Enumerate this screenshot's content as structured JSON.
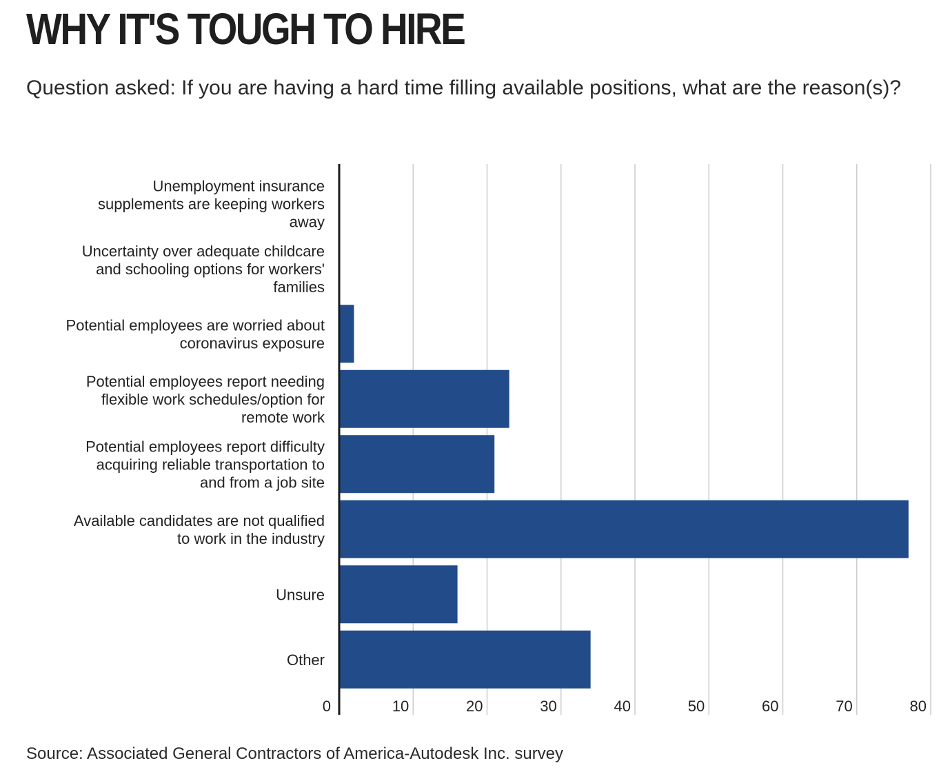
{
  "header": {
    "title": "WHY IT'S TOUGH TO HIRE",
    "subtitle": "Question asked: If you are having a hard time filling available positions, what are the reason(s)?"
  },
  "footer": {
    "source": "Source: Associated General Contractors of America-Autodesk Inc. survey"
  },
  "chart_data": {
    "type": "bar",
    "orientation": "horizontal",
    "categories": [
      [
        "Unemployment insurance",
        "supplements are keeping workers",
        "away"
      ],
      [
        "Uncertainty over adequate childcare",
        "and schooling options for workers'",
        "families"
      ],
      [
        "Potential employees are worried about",
        "coronavirus exposure"
      ],
      [
        "Potential employees report needing",
        "flexible work schedules/option for",
        "remote work"
      ],
      [
        "Potential employees report difficulty",
        "acquiring reliable transportation to",
        "and from a job site"
      ],
      [
        "Available candidates are not qualified",
        "to work in the industry"
      ],
      [
        "Unsure"
      ],
      [
        "Other"
      ]
    ],
    "values": [
      0,
      0,
      2,
      23,
      21,
      77,
      16,
      34
    ],
    "xlim": [
      0,
      80
    ],
    "xticks": [
      0,
      10,
      20,
      30,
      40,
      50,
      60,
      70,
      80
    ],
    "grid": true,
    "bar_color": "#224b89",
    "grid_color": "#cccccc",
    "axis_color": "#1a1a1a"
  }
}
